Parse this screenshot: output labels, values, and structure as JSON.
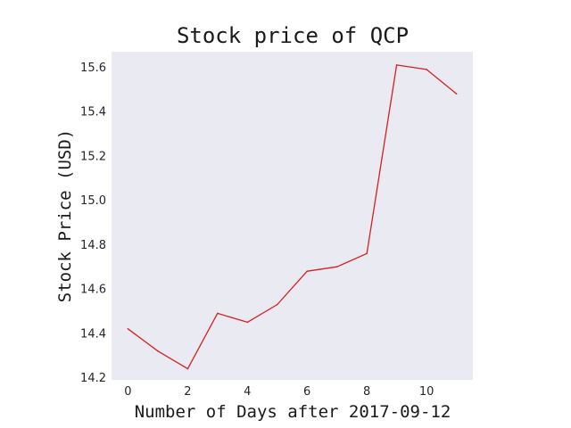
{
  "chart_data": {
    "type": "line",
    "title": "Stock price of QCP",
    "xlabel": "Number of Days after 2017-09-12",
    "ylabel": "Stock Price (USD)",
    "x": [
      0,
      1,
      2,
      3,
      4,
      5,
      6,
      7,
      8,
      9,
      10,
      11
    ],
    "series": [
      {
        "values": [
          14.42,
          14.32,
          14.24,
          14.49,
          14.45,
          14.53,
          14.68,
          14.7,
          14.76,
          15.61,
          15.59,
          15.48
        ]
      }
    ],
    "xlim": [
      -0.55,
      11.55
    ],
    "ylim": [
      14.19,
      15.67
    ],
    "x_ticks": [
      "0",
      "2",
      "4",
      "6",
      "8",
      "10"
    ],
    "y_ticks": [
      "14.2",
      "14.4",
      "14.6",
      "14.8",
      "15.0",
      "15.2",
      "15.4",
      "15.6"
    ],
    "grid": false,
    "legend": "none",
    "colors": {
      "line": "#d62020",
      "plot_background": "#eaeaf2"
    }
  }
}
